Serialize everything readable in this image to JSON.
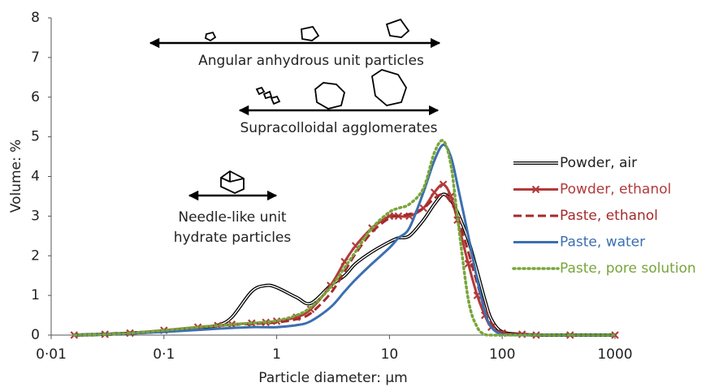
{
  "chart_data": {
    "type": "line",
    "xlabel": "Particle diameter: µm",
    "ylabel": "Volume: %",
    "log_x": true,
    "xlim": [
      0.01,
      1000
    ],
    "ylim": [
      0,
      8
    ],
    "xticks": [
      {
        "value": 0.01,
        "label": "0·01"
      },
      {
        "value": 0.1,
        "label": "0·1"
      },
      1,
      10,
      100,
      1000
    ],
    "yticks": [
      0,
      1,
      2,
      3,
      4,
      5,
      6,
      7,
      8
    ],
    "grid": false,
    "legend": "right",
    "x": [
      0.016,
      0.03,
      0.05,
      0.1,
      0.2,
      0.3,
      0.4,
      0.6,
      0.8,
      1,
      1.5,
      2,
      3,
      4,
      5,
      7,
      10,
      12,
      15,
      20,
      25,
      30,
      35,
      40,
      50,
      60,
      70,
      80,
      100,
      150,
      200,
      400,
      1000
    ],
    "series": [
      {
        "name": "Powder, air",
        "color": "#000000",
        "style": "double",
        "values": [
          0,
          0.02,
          0.05,
          0.1,
          0.18,
          0.25,
          0.45,
          1.1,
          1.25,
          1.2,
          0.95,
          0.8,
          1.25,
          1.5,
          1.8,
          2.1,
          2.35,
          2.45,
          2.5,
          2.9,
          3.3,
          3.55,
          3.4,
          3.1,
          2.4,
          1.6,
          0.9,
          0.4,
          0.08,
          0.02,
          0,
          0,
          0
        ]
      },
      {
        "name": "Powder, ethanol",
        "color": "#b23a3a",
        "style": "solid",
        "marker": "x",
        "values": [
          0,
          0.02,
          0.05,
          0.12,
          0.2,
          0.24,
          0.27,
          0.3,
          0.32,
          0.35,
          0.45,
          0.65,
          1.25,
          1.85,
          2.25,
          2.7,
          3.0,
          3.0,
          3.0,
          3.2,
          3.6,
          3.8,
          3.5,
          2.9,
          1.8,
          1.0,
          0.5,
          0.2,
          0.05,
          0.02,
          0,
          0,
          0
        ]
      },
      {
        "name": "Paste, ethanol",
        "color": "#a52a2a",
        "style": "dashed",
        "values": [
          0,
          0.02,
          0.05,
          0.11,
          0.19,
          0.23,
          0.26,
          0.28,
          0.3,
          0.32,
          0.4,
          0.55,
          1.05,
          1.6,
          2.05,
          2.6,
          2.95,
          3.0,
          3.05,
          3.2,
          3.45,
          3.55,
          3.35,
          3.0,
          2.1,
          1.3,
          0.7,
          0.3,
          0.05,
          0.01,
          0,
          0,
          0
        ]
      },
      {
        "name": "Paste, water",
        "color": "#3b6fb0",
        "style": "solid",
        "values": [
          0,
          0.02,
          0.04,
          0.08,
          0.13,
          0.16,
          0.18,
          0.2,
          0.2,
          0.2,
          0.25,
          0.35,
          0.7,
          1.1,
          1.4,
          1.8,
          2.2,
          2.45,
          2.7,
          3.6,
          4.4,
          4.8,
          4.5,
          3.8,
          2.5,
          1.4,
          0.6,
          0.2,
          0.02,
          0,
          0,
          0,
          0
        ]
      },
      {
        "name": "Paste, pore solution",
        "color": "#78a53a",
        "style": "dotted",
        "values": [
          0,
          0.02,
          0.05,
          0.12,
          0.2,
          0.24,
          0.27,
          0.3,
          0.33,
          0.36,
          0.5,
          0.7,
          1.2,
          1.7,
          2.1,
          2.7,
          3.1,
          3.2,
          3.3,
          3.7,
          4.6,
          4.9,
          4.3,
          3.0,
          0.9,
          0.2,
          0.02,
          0,
          0,
          0,
          0,
          0,
          0
        ]
      }
    ],
    "annotations": [
      {
        "lines": [
          "Angular anhydrous unit particles"
        ]
      },
      {
        "lines": [
          "Supracolloidal agglomerates"
        ]
      },
      {
        "lines": [
          "Needle-like unit",
          "hydrate particles"
        ]
      }
    ]
  }
}
